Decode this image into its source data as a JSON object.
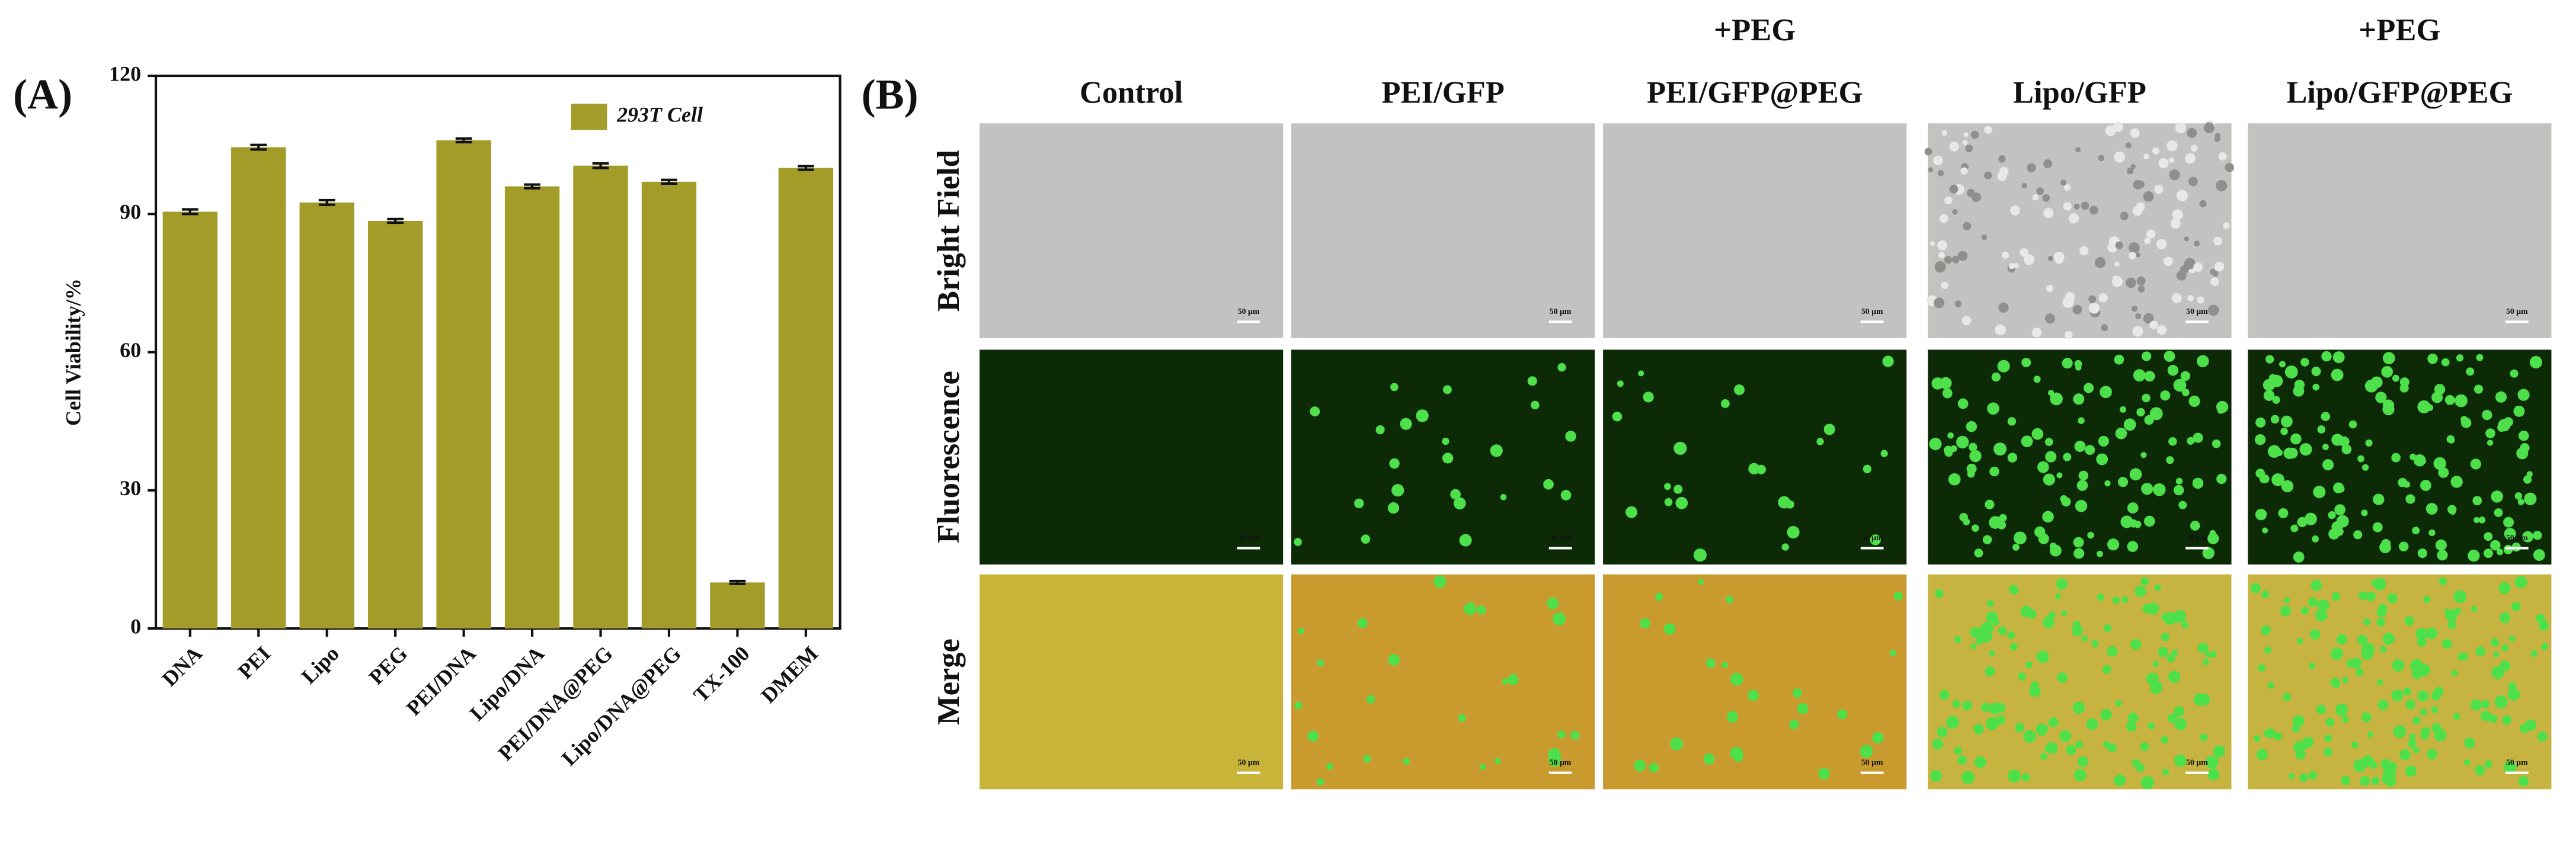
{
  "panels": [
    "(A)",
    "(B)"
  ],
  "chart_data": {
    "type": "bar",
    "ylabel": "Cell Viability/%",
    "categories": [
      "DNA",
      "PEI",
      "Lipo",
      "PEG",
      "PEI/DNA",
      "Lipo/DNA",
      "PEI/DNA@PEG",
      "Lipo/DNA@PEG",
      "TX-100",
      "DMEM"
    ],
    "series": [
      {
        "name": "293T Cell",
        "color": "#a39c28",
        "values": [
          90.5,
          104.5,
          92.5,
          88.5,
          106,
          96,
          100.5,
          97,
          10,
          100
        ],
        "errors": [
          0.5,
          0.5,
          0.5,
          0.4,
          0.4,
          0.4,
          0.5,
          0.4,
          0.3,
          0.4
        ]
      }
    ],
    "ylim": [
      0,
      120
    ],
    "yticks": [
      0,
      30,
      60,
      90,
      120
    ],
    "legend": "top-right"
  },
  "micrographs": {
    "columns": [
      {
        "header": "Control"
      },
      {
        "header": "PEI/GFP"
      },
      {
        "note": "+PEG",
        "header": "PEI/GFP@PEG"
      },
      {
        "header": "Lipo/GFP"
      },
      {
        "note": "+PEG",
        "header": "Lipo/GFP@PEG"
      }
    ],
    "rows": [
      "Bright Field",
      "Fluorescence",
      "Merge"
    ],
    "scale_bar": "50 μm"
  }
}
